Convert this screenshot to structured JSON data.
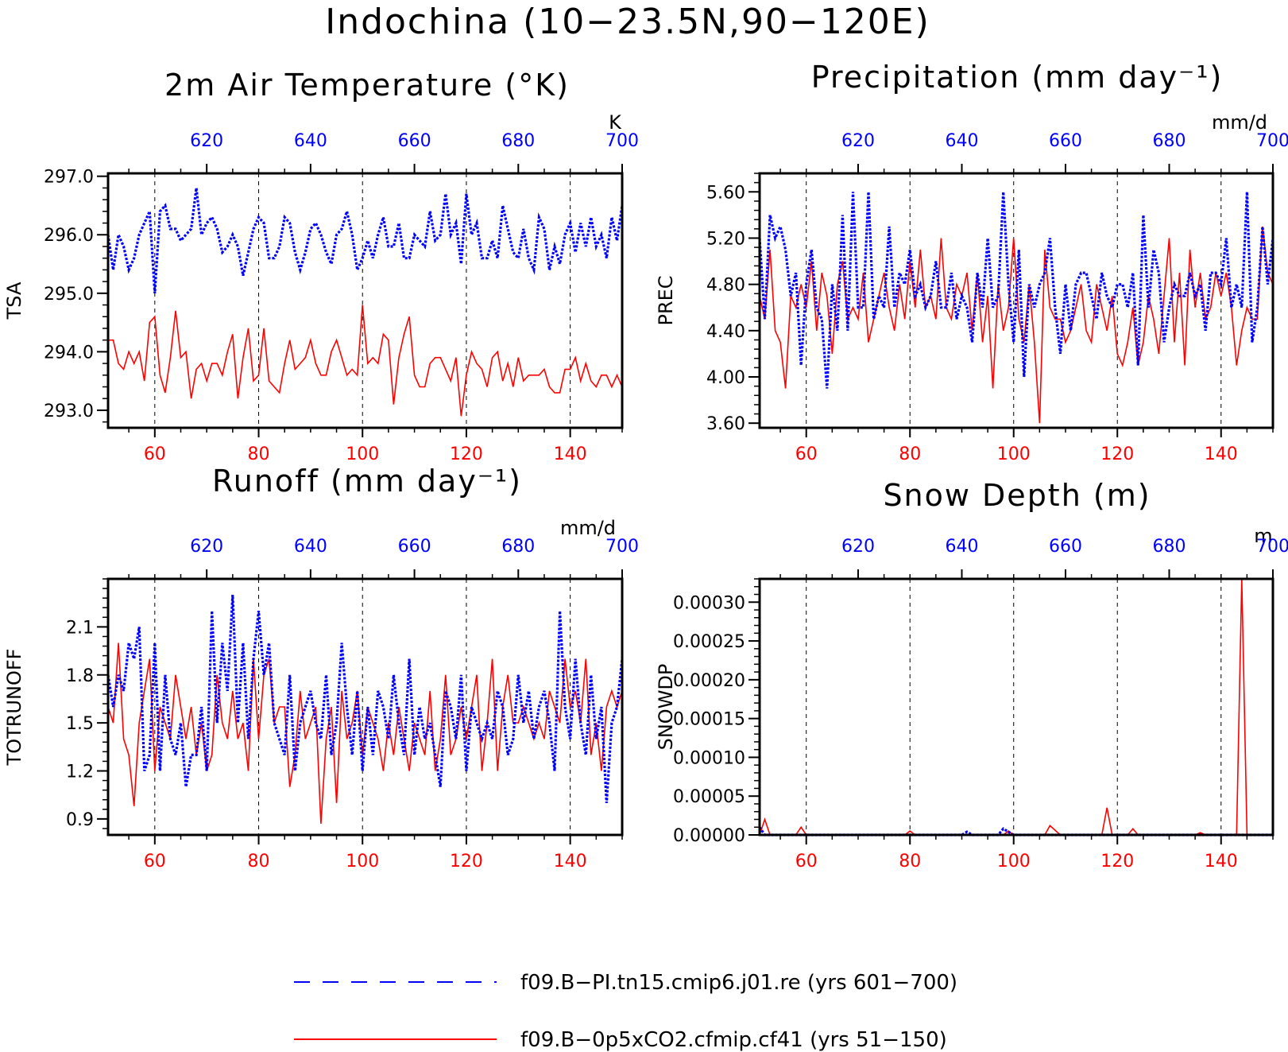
{
  "figure_title": "Indochina (10−23.5N,90−120E)",
  "colors": {
    "red": "#ff0000",
    "blue": "#0000ff",
    "axis": "#000000"
  },
  "legend": [
    {
      "label": "f09.B−PI.tn15.cmip6.j01.re (yrs 601−700)",
      "color": "#0000ff",
      "style": "dashed"
    },
    {
      "label": "f09.B−0p5xCO2.cfmip.cf41 (yrs 51−150)",
      "color": "#ff0000",
      "style": "solid"
    }
  ],
  "chart_data": [
    {
      "type": "line",
      "title": "2m Air Temperature (°K)",
      "ylabel": "TSA",
      "units": "K",
      "ylim": [
        292.7,
        297.05
      ],
      "yticks": [
        293.0,
        294.0,
        295.0,
        296.0,
        297.0
      ],
      "ytick_labels": [
        "293.0",
        "294.0",
        "295.0",
        "296.0",
        "297.0"
      ],
      "xlim_bottom": [
        51,
        150
      ],
      "xticks_bottom": [
        60,
        80,
        100,
        120,
        140
      ],
      "xlim_top": [
        601,
        700
      ],
      "xticks_top": [
        620,
        640,
        660,
        680,
        700
      ],
      "grid_x": [
        60,
        80,
        100,
        120,
        140
      ],
      "series": [
        {
          "color": "#ff0000",
          "style": "solid",
          "x_axis": "bottom",
          "values": [
            294.2,
            294.2,
            293.8,
            293.7,
            294.0,
            293.8,
            294.0,
            293.5,
            294.5,
            294.6,
            293.6,
            293.3,
            293.9,
            294.7,
            293.9,
            294.0,
            293.2,
            293.7,
            293.8,
            293.5,
            293.8,
            293.8,
            293.6,
            294.0,
            294.3,
            293.2,
            293.9,
            294.4,
            293.5,
            293.6,
            294.4,
            293.5,
            293.4,
            293.3,
            293.8,
            294.2,
            293.7,
            293.8,
            293.9,
            294.2,
            293.8,
            293.6,
            293.6,
            294.0,
            294.2,
            293.9,
            293.6,
            293.7,
            293.6,
            294.8,
            293.8,
            293.9,
            293.8,
            294.3,
            294.2,
            293.1,
            293.9,
            294.3,
            294.6,
            293.6,
            293.4,
            293.4,
            293.8,
            293.9,
            293.9,
            293.7,
            293.5,
            293.9,
            292.9,
            293.6,
            294.0,
            293.8,
            293.7,
            293.4,
            293.9,
            294.0,
            293.5,
            293.8,
            293.4,
            293.9,
            293.5,
            293.6,
            293.6,
            293.6,
            293.7,
            293.4,
            293.3,
            293.3,
            293.7,
            293.7,
            293.9,
            293.5,
            293.8,
            293.5,
            293.4,
            293.6,
            293.6,
            293.4,
            293.6,
            293.4
          ]
        },
        {
          "color": "#0000ff",
          "style": "dashed",
          "x_axis": "top",
          "values": [
            296.0,
            295.4,
            296.0,
            295.8,
            295.4,
            295.6,
            296.0,
            296.2,
            296.4,
            295.0,
            296.4,
            296.5,
            296.1,
            296.1,
            295.9,
            296.0,
            296.1,
            296.8,
            296.0,
            296.2,
            296.3,
            296.1,
            295.7,
            295.8,
            296.0,
            295.8,
            295.3,
            295.7,
            296.1,
            296.3,
            296.2,
            295.6,
            295.6,
            295.8,
            296.3,
            296.2,
            295.7,
            295.4,
            295.7,
            296.1,
            296.2,
            296.0,
            295.7,
            295.5,
            296.0,
            296.1,
            296.4,
            296.0,
            295.4,
            295.6,
            295.9,
            295.6,
            296.0,
            296.3,
            295.8,
            295.8,
            296.2,
            295.6,
            295.6,
            296.0,
            295.9,
            295.8,
            296.4,
            295.9,
            296.0,
            296.7,
            296.0,
            296.2,
            295.5,
            296.7,
            296.0,
            296.2,
            295.6,
            295.6,
            295.9,
            295.6,
            296.5,
            296.1,
            295.7,
            295.6,
            296.1,
            295.6,
            295.4,
            296.3,
            296.1,
            295.4,
            295.8,
            295.5,
            296.0,
            296.2,
            295.7,
            296.2,
            295.8,
            296.3,
            295.8,
            296.0,
            295.6,
            296.3,
            295.9,
            296.5
          ]
        }
      ]
    },
    {
      "type": "line",
      "title": "Precipitation (mm day⁻¹)",
      "ylabel": "PREC",
      "units": "mm/d",
      "ylim": [
        3.56,
        5.76
      ],
      "yticks": [
        3.6,
        4.0,
        4.4,
        4.8,
        5.2,
        5.6
      ],
      "ytick_labels": [
        "3.60",
        "4.00",
        "4.40",
        "4.80",
        "5.20",
        "5.60"
      ],
      "xlim_bottom": [
        51,
        150
      ],
      "xticks_bottom": [
        60,
        80,
        100,
        120,
        140
      ],
      "xlim_top": [
        601,
        700
      ],
      "xticks_top": [
        620,
        640,
        660,
        680,
        700
      ],
      "grid_x": [
        60,
        80,
        100,
        120,
        140
      ],
      "series": [
        {
          "color": "#ff0000",
          "style": "solid",
          "x_axis": "bottom",
          "values": [
            4.7,
            4.5,
            5.1,
            4.4,
            4.3,
            3.9,
            4.7,
            4.6,
            4.8,
            4.6,
            5.0,
            4.4,
            4.9,
            4.7,
            4.2,
            4.8,
            5.0,
            4.5,
            4.6,
            4.5,
            4.9,
            4.3,
            4.5,
            4.7,
            4.9,
            4.6,
            4.4,
            4.8,
            4.5,
            5.0,
            4.6,
            5.1,
            4.6,
            4.7,
            4.5,
            5.2,
            4.6,
            4.5,
            4.8,
            4.7,
            4.9,
            4.4,
            4.9,
            4.3,
            4.7,
            3.9,
            4.8,
            4.4,
            4.6,
            5.2,
            4.5,
            4.3,
            4.8,
            4.3,
            3.6,
            5.1,
            4.6,
            4.5,
            4.5,
            4.3,
            4.4,
            4.6,
            4.8,
            4.4,
            4.3,
            4.8,
            4.6,
            4.4,
            4.7,
            4.2,
            4.1,
            4.3,
            4.6,
            4.1,
            4.3,
            4.7,
            4.5,
            4.2,
            4.7,
            5.2,
            4.3,
            4.9,
            4.1,
            5.1,
            4.6,
            4.9,
            4.5,
            4.6,
            4.9,
            4.7,
            4.9,
            4.6,
            4.1,
            4.4,
            4.6,
            4.5,
            4.5,
            5.3,
            4.9,
            4.8
          ]
        },
        {
          "color": "#0000ff",
          "style": "dashed",
          "x_axis": "top",
          "values": [
            5.2,
            4.5,
            5.4,
            5.2,
            5.3,
            5.1,
            4.7,
            4.9,
            4.1,
            4.8,
            5.1,
            4.6,
            4.5,
            3.9,
            4.8,
            4.4,
            5.4,
            4.4,
            5.6,
            4.6,
            4.6,
            5.6,
            4.5,
            4.7,
            4.6,
            5.3,
            4.6,
            4.9,
            4.8,
            5.1,
            4.7,
            4.8,
            4.6,
            4.7,
            5.0,
            4.6,
            4.6,
            4.9,
            4.5,
            4.7,
            4.6,
            4.3,
            4.9,
            4.6,
            5.2,
            4.6,
            4.7,
            5.6,
            4.8,
            4.3,
            5.1,
            4.0,
            4.8,
            4.6,
            4.8,
            4.9,
            5.2,
            4.6,
            4.2,
            4.8,
            4.4,
            4.8,
            4.9,
            4.9,
            4.7,
            4.5,
            4.9,
            4.7,
            4.6,
            4.8,
            4.8,
            4.6,
            4.9,
            4.1,
            5.4,
            4.6,
            5.1,
            4.9,
            4.3,
            4.6,
            4.8,
            4.7,
            4.7,
            4.9,
            4.7,
            4.8,
            4.4,
            4.9,
            4.9,
            4.8,
            5.2,
            4.6,
            4.8,
            4.6,
            5.6,
            4.3,
            4.6,
            5.3,
            4.8,
            5.2
          ]
        }
      ]
    },
    {
      "type": "line",
      "title": "Runoff (mm day⁻¹)",
      "ylabel": "TOTRUNOFF",
      "units": "mm/d",
      "ylim": [
        0.8,
        2.4
      ],
      "yticks": [
        0.9,
        1.2,
        1.5,
        1.8,
        2.1
      ],
      "ytick_labels": [
        "0.9",
        "1.2",
        "1.5",
        "1.8",
        "2.1"
      ],
      "xlim_bottom": [
        51,
        150
      ],
      "xticks_bottom": [
        60,
        80,
        100,
        120,
        140
      ],
      "xlim_top": [
        601,
        700
      ],
      "xticks_top": [
        620,
        640,
        660,
        680,
        700
      ],
      "grid_x": [
        60,
        80,
        100,
        120,
        140
      ],
      "series": [
        {
          "color": "#ff0000",
          "style": "solid",
          "x_axis": "bottom",
          "values": [
            1.6,
            1.5,
            2.0,
            1.4,
            1.3,
            0.98,
            1.5,
            1.7,
            1.9,
            1.2,
            1.6,
            1.5,
            1.4,
            1.8,
            1.6,
            1.4,
            1.6,
            1.3,
            1.5,
            1.2,
            1.3,
            1.8,
            1.5,
            1.4,
            1.7,
            1.4,
            1.5,
            1.2,
            1.9,
            1.4,
            1.8,
            1.9,
            1.5,
            1.6,
            1.6,
            1.1,
            1.3,
            1.7,
            1.4,
            1.5,
            1.6,
            0.87,
            1.4,
            1.6,
            1.0,
            1.7,
            1.4,
            1.5,
            1.7,
            1.3,
            1.6,
            1.5,
            1.4,
            1.2,
            1.5,
            1.3,
            1.6,
            1.4,
            1.2,
            1.5,
            1.4,
            1.3,
            1.7,
            1.2,
            1.4,
            1.8,
            1.3,
            1.4,
            1.6,
            1.4,
            1.6,
            1.8,
            1.2,
            1.5,
            1.9,
            1.2,
            1.6,
            1.8,
            1.5,
            1.5,
            1.6,
            1.5,
            1.4,
            1.5,
            1.4,
            1.7,
            1.6,
            1.5,
            1.9,
            1.6,
            1.7,
            1.5,
            1.9,
            1.3,
            1.5,
            1.2,
            1.6,
            1.7,
            1.6,
            1.7
          ]
        },
        {
          "color": "#0000ff",
          "style": "dashed",
          "x_axis": "top",
          "values": [
            1.8,
            1.6,
            1.8,
            1.7,
            2.0,
            1.9,
            2.1,
            1.2,
            1.3,
            2.0,
            1.2,
            1.8,
            1.4,
            1.3,
            1.5,
            1.1,
            1.3,
            1.3,
            1.6,
            1.2,
            2.2,
            1.5,
            2.0,
            1.7,
            2.3,
            1.5,
            2.0,
            1.4,
            1.9,
            2.2,
            1.8,
            2.0,
            1.5,
            1.4,
            1.3,
            1.8,
            1.2,
            1.5,
            1.6,
            1.7,
            1.5,
            1.4,
            1.8,
            1.3,
            1.5,
            2.0,
            1.6,
            1.3,
            1.7,
            1.2,
            1.6,
            1.3,
            1.7,
            1.6,
            1.4,
            1.8,
            1.5,
            1.3,
            1.9,
            1.3,
            1.6,
            1.4,
            1.5,
            1.3,
            1.1,
            1.7,
            1.6,
            1.4,
            1.8,
            1.2,
            1.6,
            1.5,
            1.4,
            1.5,
            1.4,
            1.7,
            1.6,
            1.3,
            1.4,
            1.8,
            1.5,
            1.7,
            1.4,
            1.6,
            1.7,
            1.5,
            1.2,
            2.2,
            1.6,
            1.4,
            1.9,
            1.5,
            1.3,
            1.8,
            1.4,
            1.6,
            1.0,
            1.5,
            1.6,
            1.9
          ]
        }
      ]
    },
    {
      "type": "line",
      "title": "Snow Depth (m)",
      "ylabel": "SNOWDP",
      "units": "m",
      "ylim": [
        0.0,
        0.00033
      ],
      "yticks": [
        0.0,
        5e-05,
        0.0001,
        0.00015,
        0.0002,
        0.00025,
        0.0003
      ],
      "ytick_labels": [
        "0.00000",
        "0.00005",
        "0.00010",
        "0.00015",
        "0.00020",
        "0.00025",
        "0.00030"
      ],
      "xlim_bottom": [
        51,
        150
      ],
      "xticks_bottom": [
        60,
        80,
        100,
        120,
        140
      ],
      "xlim_top": [
        601,
        700
      ],
      "xticks_top": [
        620,
        640,
        660,
        680,
        700
      ],
      "grid_x": [
        60,
        80,
        100,
        120,
        140
      ],
      "series": [
        {
          "color": "#ff0000",
          "style": "solid",
          "x_axis": "bottom",
          "values": [
            0,
            2e-05,
            0,
            0,
            0,
            0,
            0,
            0,
            1e-05,
            0,
            0,
            0,
            0,
            0,
            0,
            0,
            0,
            0,
            0,
            0,
            0,
            0,
            0,
            0,
            0,
            0,
            0,
            0,
            0,
            5e-06,
            0,
            0,
            0,
            0,
            0,
            0,
            0,
            0,
            0,
            0,
            0,
            0,
            0,
            0,
            0,
            0,
            0,
            0,
            5e-06,
            0,
            0,
            0,
            0,
            0,
            0,
            0,
            1.2e-05,
            6e-06,
            0,
            0,
            0,
            0,
            0,
            0,
            0,
            0,
            0,
            3.5e-05,
            0,
            0,
            0,
            0,
            8e-06,
            0,
            0,
            0,
            0,
            0,
            0,
            0,
            0,
            0,
            0,
            0,
            0,
            3e-06,
            0,
            0,
            0,
            0,
            0,
            0,
            0,
            0.00033,
            0,
            0,
            0,
            0,
            0,
            0
          ]
        },
        {
          "color": "#0000ff",
          "style": "dashed",
          "x_axis": "top",
          "values": [
            1e-05,
            0,
            0,
            0,
            0,
            0,
            0,
            0,
            0,
            0,
            0,
            0,
            0,
            0,
            0,
            0,
            0,
            0,
            0,
            0,
            0,
            0,
            0,
            0,
            0,
            0,
            0,
            0,
            0,
            0,
            0,
            0,
            0,
            0,
            0,
            0,
            0,
            0,
            0,
            0,
            4e-06,
            0,
            0,
            0,
            0,
            0,
            0,
            8e-06,
            4e-06,
            0,
            0,
            0,
            0,
            0,
            0,
            0,
            0,
            0,
            0,
            0,
            0,
            0,
            0,
            0,
            0,
            0,
            0,
            0,
            0,
            0,
            0,
            0,
            0,
            0,
            0,
            0,
            0,
            0,
            0,
            0,
            0,
            0,
            0,
            0,
            0,
            0,
            0,
            0,
            0,
            0,
            0,
            0,
            0,
            0,
            0,
            0,
            0,
            0,
            0,
            0
          ]
        }
      ]
    }
  ]
}
